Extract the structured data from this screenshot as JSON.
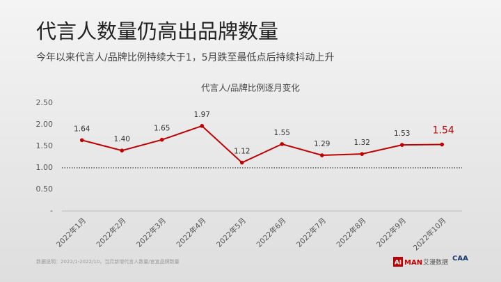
{
  "chart_data": {
    "type": "line",
    "title": "代言人数量仍高出品牌数量",
    "subtitle": "今年以来代言人/品牌比例持续大于1，5月跌至最低点后持续抖动上升",
    "chart_title": "代言人/品牌比例逐月变化",
    "footnote": "数据说明：2022/1-2022/10，当月新增代言人数量/官宣品牌数量",
    "logos": [
      "AI",
      "MAN",
      "艾漫数据",
      "CAA"
    ],
    "categories": [
      "2022年1月",
      "2022年2月",
      "2022年3月",
      "2022年4月",
      "2022年5月",
      "2022年6月",
      "2022年7月",
      "2022年8月",
      "2022年9月",
      "2022年10月"
    ],
    "values": [
      1.64,
      1.4,
      1.65,
      1.97,
      1.12,
      1.55,
      1.29,
      1.32,
      1.53,
      1.54
    ],
    "value_labels": [
      "1.64",
      "1.40",
      "1.65",
      "1.97",
      "1.12",
      "1.55",
      "1.29",
      "1.32",
      "1.53",
      "1.54"
    ],
    "color": "#c00000",
    "highlight_last": true,
    "reference_line": 1,
    "ylim": [
      0,
      2.5
    ],
    "yticks": [
      {
        "value": 0,
        "label": "-"
      },
      {
        "value": 0.5,
        "label": "0.50"
      },
      {
        "value": 1,
        "label": "1.00"
      },
      {
        "value": 1.5,
        "label": "1.50"
      },
      {
        "value": 2,
        "label": "2.00"
      },
      {
        "value": 2.5,
        "label": "2.50"
      }
    ],
    "grid": false
  }
}
